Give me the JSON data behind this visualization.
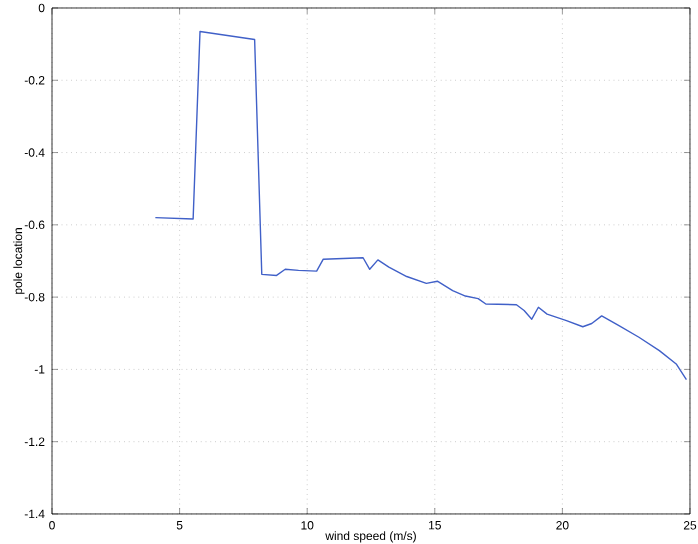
{
  "chart_data": {
    "type": "line",
    "xlabel": "wind speed (m/s)",
    "ylabel": "pole location",
    "xlim": [
      0,
      25
    ],
    "ylim": [
      -1.4,
      0
    ],
    "xticks": [
      0,
      5,
      10,
      15,
      20,
      25
    ],
    "yticks": [
      -1.4,
      -1.2,
      -1,
      -0.8,
      -0.6,
      -0.4,
      -0.2,
      0
    ],
    "grid": true,
    "series": [
      {
        "color": "#4060c8",
        "x": [
          4.05,
          5.53,
          5.8,
          7.94,
          8.22,
          8.8,
          9.14,
          9.66,
          10.37,
          10.63,
          12.19,
          12.45,
          12.77,
          13.2,
          13.9,
          14.67,
          15.1,
          15.7,
          16.2,
          16.7,
          17.0,
          18.2,
          18.5,
          18.8,
          19.06,
          19.4,
          20.16,
          20.8,
          21.15,
          21.54,
          22.2,
          23.0,
          23.8,
          24.46,
          24.86
        ],
        "values": [
          -0.58,
          -0.584,
          -0.065,
          -0.087,
          -0.737,
          -0.74,
          -0.723,
          -0.726,
          -0.728,
          -0.695,
          -0.691,
          -0.723,
          -0.697,
          -0.717,
          -0.743,
          -0.762,
          -0.756,
          -0.782,
          -0.797,
          -0.804,
          -0.819,
          -0.821,
          -0.837,
          -0.861,
          -0.828,
          -0.847,
          -0.865,
          -0.882,
          -0.873,
          -0.852,
          -0.878,
          -0.911,
          -0.948,
          -0.985,
          -1.028
        ]
      }
    ]
  }
}
